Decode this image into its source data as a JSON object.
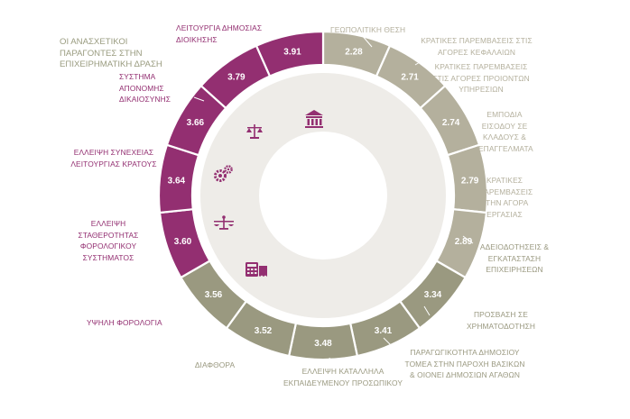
{
  "chart_data": {
    "type": "donut",
    "title": "ΟΙ ΑΝΑΣΧΕΤΙΚΟΙ ΠΑΡΑΓΟΝΤΕΣ ΣΤΗΝ ΕΠΙΧΕΙΡΗΜΑΤΙΚΗ ΔΡΑΣΗ",
    "colors": {
      "top_factors": "#932f71",
      "neutral_factors": "#b4b09d",
      "mid_factors": "#9a9980",
      "ring_bg": "#eeece8"
    },
    "segments": [
      {
        "label": "ΓΕΩΠΟΛΙΤΙΚΗ ΘΕΣΗ",
        "value": 2.28,
        "color": "#b4b09d"
      },
      {
        "label": "ΚΡΑΤΙΚΕΣ ΠΑΡΕΜΒΑΣΕΙΣ ΣΤΙΣ ΑΓΟΡΕΣ ΚΕΦΑΛΑΙΩΝ",
        "value": 2.71,
        "color": "#b4b09d"
      },
      {
        "label": "ΚΡΑΤΙΚΕΣ ΠΑΡΕΜΒΑΣΕΙΣ ΣΤΙΣ ΑΓΟΡΕΣ ΠΡΟΙΟΝΤΩΝ ΥΠΗΡΕΣΙΩΝ",
        "value": 2.74,
        "color": "#b4b09d"
      },
      {
        "label": "ΕΜΠΟΔΙΑ ΕΙΣΟΔΟΥ ΣΕ ΚΛΑΔΟΥΣ & ΕΠΑΓΓΕΛΜΑΤΑ",
        "value": 2.79,
        "color": "#b4b09d"
      },
      {
        "label": "ΚΡΑΤΙΚΕΣ ΠΑΡΕΜΒΑΣΕΙΣ ΣΤΗΝ ΑΓΟΡΑ ΕΡΓΑΣΙΑΣ",
        "value": 2.89,
        "color": "#b4b09d"
      },
      {
        "label": "ΑΔΕΙΟΔΟΤΗΣΕΙΣ & ΕΓΚΑΤΑΣΤΑΣΗ ΕΠΙΧΕΙΡΗΣΕΩΝ",
        "value": 3.34,
        "color": "#9a9980"
      },
      {
        "label": "ΠΡΟΣΒΑΣΗ ΣΕ ΧΡΗΜΑΤΟΔΟΤΗΣΗ",
        "value": 3.41,
        "color": "#9a9980"
      },
      {
        "label": "ΠΑΡΑΓΩΓΙΚΟΤΗΤΑ ΔΗΜΟΣΙΟΥ ΤΟΜΕΑ ΣΤΗΝ ΠΑΡΟΧΗ ΒΑΣΙΚΩΝ & ΟΙΟΝΕΙ ΔΗΜΟΣΙΩΝ ΑΓΑΘΩΝ",
        "value": 3.48,
        "color": "#9a9980"
      },
      {
        "label": "ΕΛΛΕΙΨΗ ΚΑΤΑΛΛΗΛΑ ΕΚΠΑΙΔΕΥΜΕΝΟΥ ΠΡΟΣΩΠΙΚΟΥ",
        "value": 3.52,
        "color": "#9a9980"
      },
      {
        "label": "ΔΙΑΦΘΟΡΑ",
        "value": 3.56,
        "color": "#9a9980"
      },
      {
        "label": "ΥΨΗΛΗ ΦΟΡΟΛΟΓΙΑ",
        "value": 3.6,
        "color": "#932f71"
      },
      {
        "label": "ΕΛΛΕΙΨΗ ΣΤΑΘΕΡΟΤΗΤΑΣ ΦΟΡΟΛΟΓΙΚΟΥ ΣΥΣΤΗΜΑΤΟΣ",
        "value": 3.64,
        "color": "#932f71"
      },
      {
        "label": "ΕΛΛΕΙΨΗ ΣΥΝΕΧΕΙΑΣ ΛΕΙΤΟΥΡΓΙΑΣ ΚΡΑΤΟΥΣ",
        "value": 3.66,
        "color": "#932f71"
      },
      {
        "label": "ΣΥΣΤΗΜΑ ΑΠΟΝΟΜΗΣ ΔΙΚΑΙΟΣΥΝΗΣ",
        "value": 3.79,
        "color": "#932f71"
      },
      {
        "label": "ΛΕΙΤΟΥΡΓΙΑ ΔΗΜΟΣΙΑΣ ΔΙΟΙΚΗΣΗΣ",
        "value": 3.91,
        "color": "#932f71"
      }
    ],
    "icons": [
      "institution-icon",
      "scales-icon",
      "gears-icon",
      "balance-icon",
      "tax-calculator-icon"
    ]
  }
}
